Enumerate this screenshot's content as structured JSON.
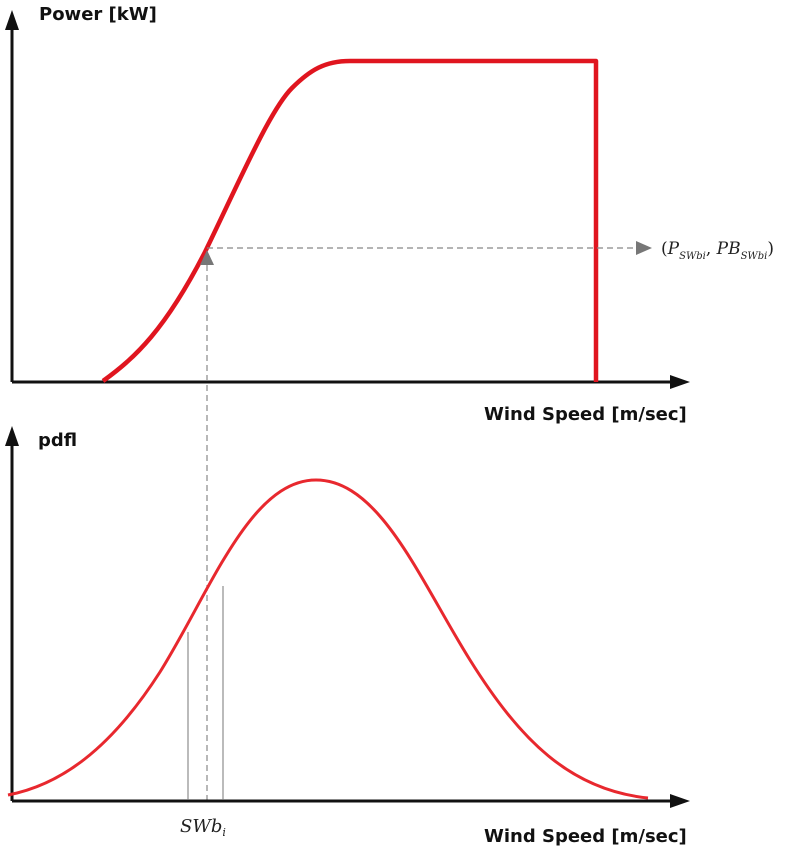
{
  "top_panel": {
    "y_axis_label": "Power [kW]",
    "x_axis_label": "Wind Speed [m/sec]",
    "point_label": {
      "open": "(",
      "P": "P",
      "P_sub": "SWbi",
      "comma": ", ",
      "PB": "PB",
      "PB_sub": "SWbi",
      "close": ")"
    }
  },
  "bottom_panel": {
    "y_axis_label": "pdfl",
    "x_axis_label": "Wind Speed [m/sec]",
    "bin_label": {
      "main": "SWb",
      "sub": "i"
    }
  },
  "colors": {
    "curve": "#e0151f",
    "pdf_curve": "#e8282e",
    "axis": "#111111",
    "guide": "#888888",
    "bin_lines": "#777777"
  }
}
